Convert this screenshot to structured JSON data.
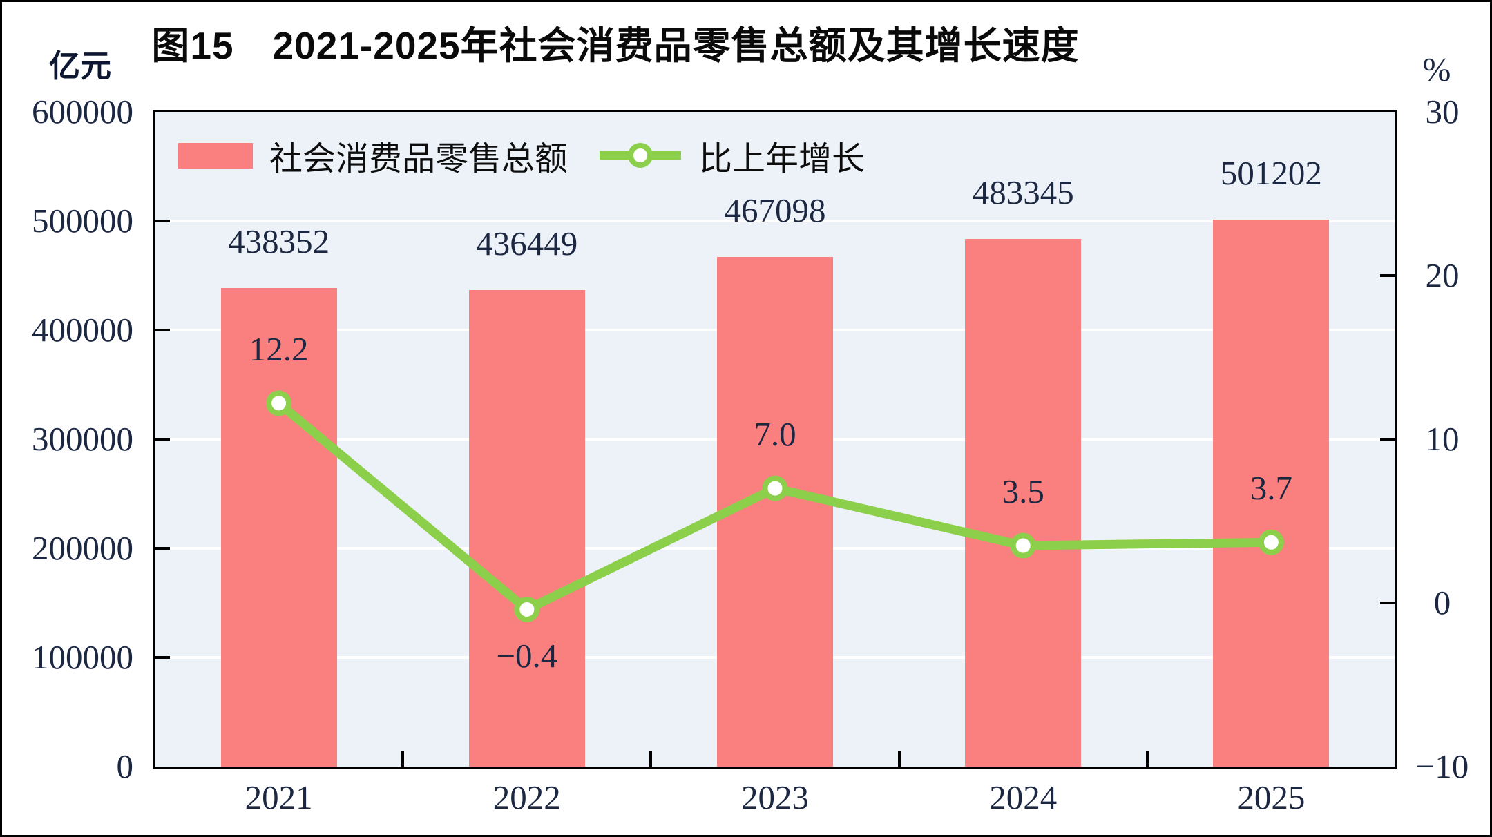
{
  "title": "图15　2021-2025年社会消费品零售总额及其增长速度",
  "left_axis": {
    "unit": "亿元",
    "tick_labels": [
      "600000",
      "500000",
      "400000",
      "300000",
      "200000",
      "100000",
      "0"
    ],
    "min": 0,
    "max": 600000
  },
  "right_axis": {
    "unit": "%",
    "tick_labels": [
      "30",
      "20",
      "10",
      "0",
      "−10"
    ],
    "min": -10,
    "max": 30
  },
  "legend": {
    "bars_label": "社会消费品零售总额",
    "line_label": "比上年增长"
  },
  "colors": {
    "bar": "#fa8080",
    "line": "#8ccf4b",
    "marker_fill": "#ffffff",
    "plot_background": "#ecf2f7",
    "gridline": "#ffffff",
    "number_text": "#1c2742"
  },
  "chart_data": {
    "type": "bar+line",
    "title": "图15　2021-2025年社会消费品零售总额及其增长速度",
    "categories": [
      "2021",
      "2022",
      "2023",
      "2024",
      "2025"
    ],
    "series": [
      {
        "name": "社会消费品零售总额",
        "type": "bar",
        "axis": "left",
        "values": [
          438352,
          436449,
          467098,
          483345,
          501202
        ],
        "labels": [
          "438352",
          "436449",
          "467098",
          "483345",
          "501202"
        ]
      },
      {
        "name": "比上年增长",
        "type": "line",
        "axis": "right",
        "values": [
          12.2,
          -0.4,
          7.0,
          3.5,
          3.7
        ],
        "labels": [
          "12.2",
          "−0.4",
          "7.0",
          "3.5",
          "3.7"
        ],
        "label_positions": [
          "above",
          "below",
          "above",
          "above",
          "above"
        ]
      }
    ],
    "left_ylim": [
      0,
      600000
    ],
    "right_ylim": [
      -10,
      30
    ],
    "left_tick_step": 100000,
    "right_tick_step": 10,
    "grid": "horizontal-white",
    "legend_position": "top-left-inside"
  }
}
